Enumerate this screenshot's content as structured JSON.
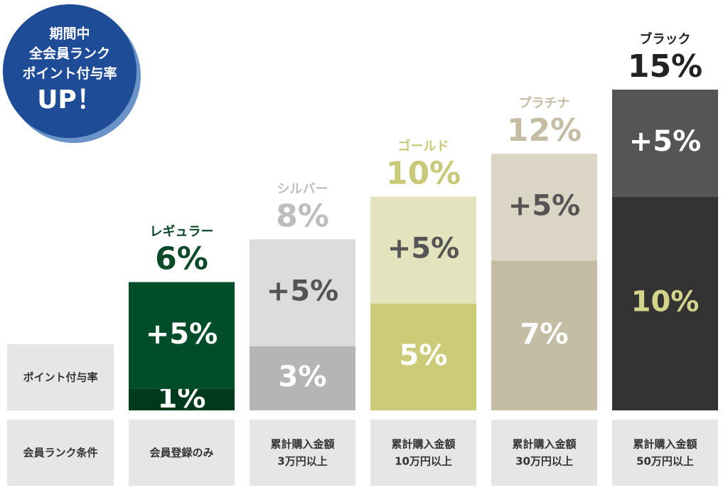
{
  "badge": [
    "期間中",
    "全会員ランク",
    "ポイント付与率",
    "UP！"
  ],
  "row_headers": [
    "ポイント付与率",
    "会員ランク条件"
  ],
  "chart_data": {
    "type": "bar",
    "stacked": true,
    "categories": [
      "レギュラー",
      "シルバー",
      "ゴールド",
      "プラチナ",
      "ブラック"
    ],
    "category_colors": [
      "#0b4a28",
      "#bdbdbd",
      "#c9c97a",
      "#c5bca4",
      "#222222"
    ],
    "totals": [
      6,
      8,
      10,
      12,
      15
    ],
    "total_labels": [
      "6%",
      "8%",
      "10%",
      "12%",
      "15%"
    ],
    "series": [
      {
        "values": [
          1,
          3,
          5,
          7,
          10
        ],
        "value_labels": [
          "1%",
          "3%",
          "5%",
          "7%",
          "10%"
        ],
        "colors": [
          "#003a1d",
          "#b5b5b5",
          "#cccb77",
          "#c5bca4",
          "#333333"
        ],
        "label_colors": [
          "#ffffff",
          "#ffffff",
          "#ffffff",
          "#ffffff",
          "#d3d38a"
        ]
      },
      {
        "values": [
          5,
          5,
          5,
          5,
          5
        ],
        "value_labels": [
          "+5%",
          "+5%",
          "+5%",
          "+5%",
          "+5%"
        ],
        "colors": [
          "#004d2a",
          "#dcdcdc",
          "#e3e4bd",
          "#dbd5c6",
          "#555555"
        ],
        "label_colors": [
          "#ffffff",
          "#555555",
          "#555555",
          "#555555",
          "#ffffff"
        ]
      }
    ],
    "ylim": [
      0,
      15
    ],
    "conditions": [
      [
        "会員登録のみ"
      ],
      [
        "累計購入金額",
        "3万円以上"
      ],
      [
        "累計購入金額",
        "10万円以上"
      ],
      [
        "累計購入金額",
        "30万円以上"
      ],
      [
        "累計購入金額",
        "50万円以上"
      ]
    ]
  }
}
